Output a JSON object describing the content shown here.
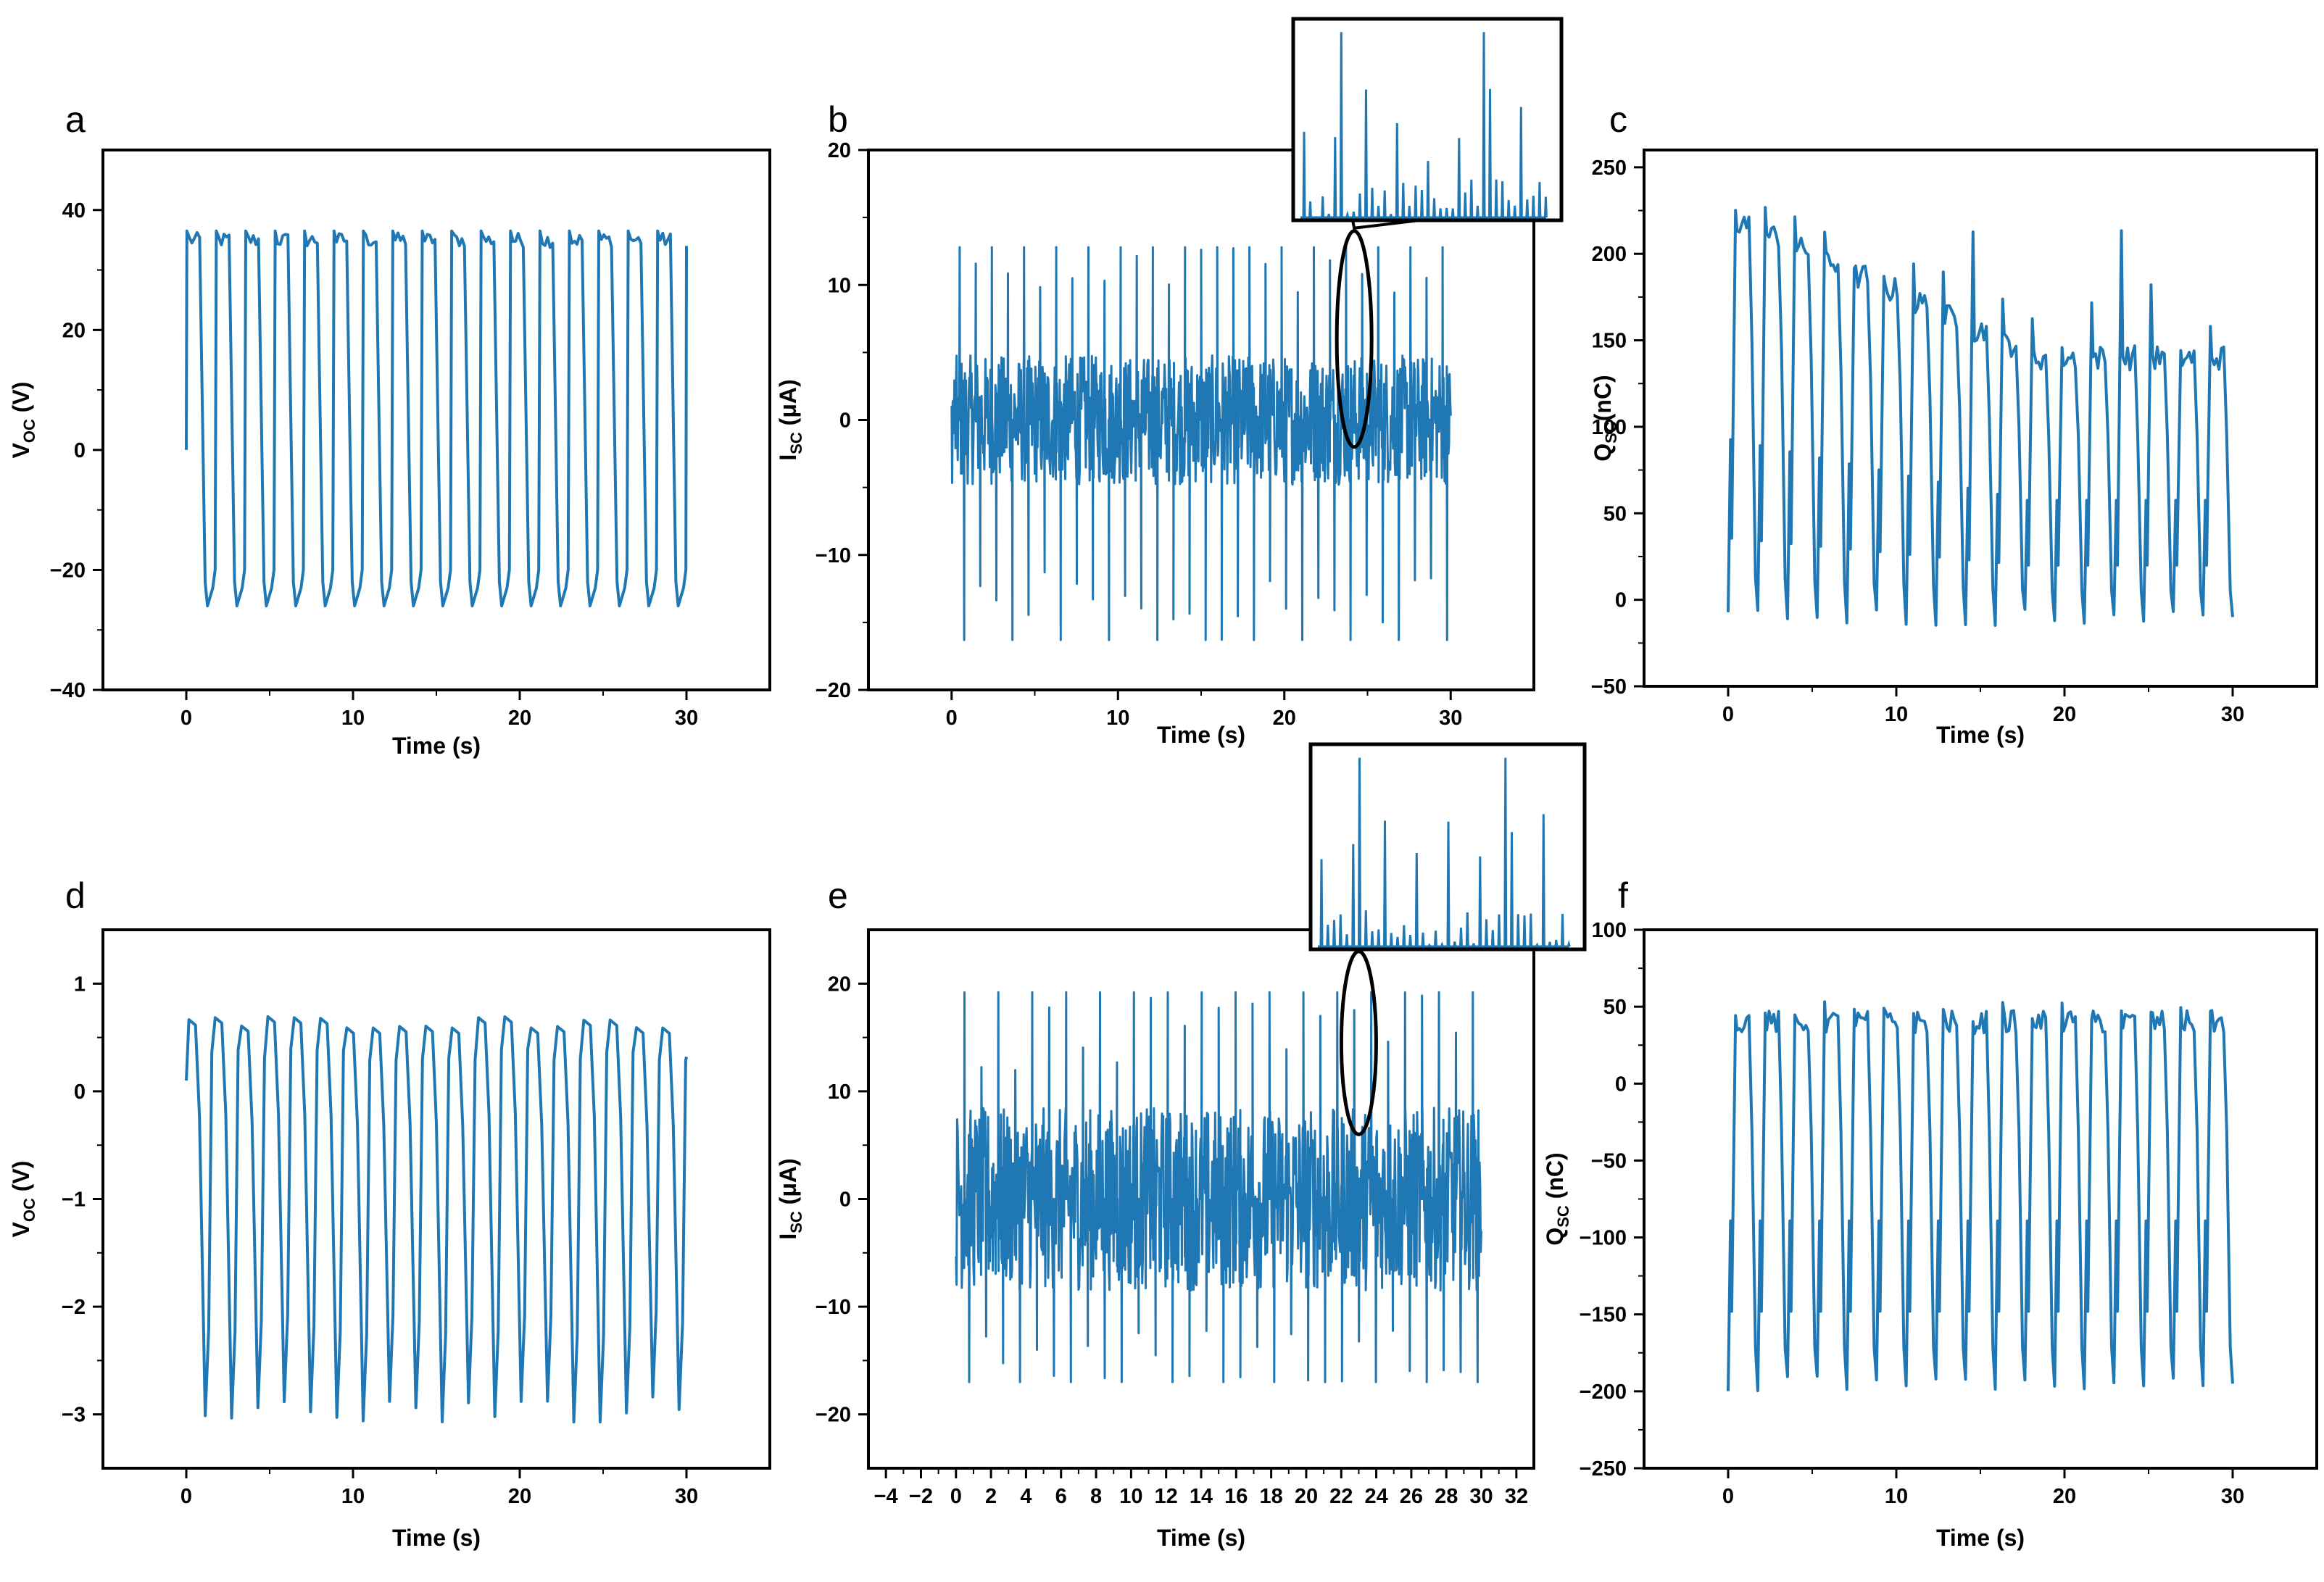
{
  "figure": {
    "line_color": "#1f77b4"
  },
  "chart_data": [
    {
      "panel": "a",
      "type": "line",
      "title": "",
      "xlabel": "Time (s)",
      "ylabel_main": "V",
      "ylabel_sub": "OC",
      "ylabel_tail": " (V)",
      "xlim": [
        -5,
        35
      ],
      "ylim": [
        -40,
        50
      ],
      "xticks": [
        0,
        10,
        20,
        30
      ],
      "yticks": [
        -40,
        -20,
        0,
        20,
        40
      ],
      "xtick_labels": [
        "0",
        "10",
        "20",
        "30"
      ],
      "ytick_labels": [
        "−40",
        "−20",
        "0",
        "20",
        "40"
      ],
      "signal": {
        "kind": "square",
        "cycles": 17,
        "t_start": 0,
        "t_end": 30,
        "high": 35,
        "low": -26,
        "start_value": 0,
        "peak_overshoot": 1.5
      }
    },
    {
      "panel": "b",
      "type": "line",
      "title": "",
      "xlabel": "Time (s)",
      "ylabel_main": "I",
      "ylabel_sub": "SC",
      "ylabel_tail": " (μA)",
      "xlim": [
        -5,
        35
      ],
      "ylim": [
        -20,
        20
      ],
      "xticks": [
        0,
        10,
        20,
        30
      ],
      "yticks": [
        -20,
        -10,
        0,
        10,
        20
      ],
      "xtick_labels": [
        "0",
        "10",
        "20",
        "30"
      ],
      "ytick_labels": [
        "−20",
        "−10",
        "0",
        "10",
        "20"
      ],
      "signal": {
        "kind": "spikes",
        "cycles": 31,
        "t_start": 0,
        "t_end": 30,
        "pos_peak": 12.8,
        "neg_peak": -16.3,
        "noise": 4.8,
        "pos_range": [
          9,
          13
        ],
        "neg_range": [
          -16.3,
          -11
        ]
      },
      "inset": {
        "highlight_time": 24.2,
        "highlight_range": [
          -2,
          14
        ]
      }
    },
    {
      "panel": "c",
      "type": "line",
      "title": "",
      "xlabel": "Time (s)",
      "ylabel_main": "Q",
      "ylabel_sub": "SC",
      "ylabel_tail": "(nC)",
      "xlim": [
        -5,
        35
      ],
      "ylim": [
        -50,
        260
      ],
      "xticks": [
        0,
        10,
        20,
        30
      ],
      "yticks": [
        -50,
        0,
        50,
        100,
        150,
        200,
        250
      ],
      "xtick_labels": [
        "0",
        "10",
        "20",
        "30"
      ],
      "ytick_labels": [
        "−50",
        "0",
        "50",
        "100",
        "150",
        "200",
        "250"
      ],
      "signal": {
        "kind": "charge",
        "cycles": 17,
        "t_start": 0,
        "t_end": 30,
        "high_early": 218,
        "high_late": 140,
        "low": -10,
        "peak": 232
      }
    },
    {
      "panel": "d",
      "type": "line",
      "title": "",
      "xlabel": "Time (s)",
      "ylabel_main": "V",
      "ylabel_sub": "OC",
      "ylabel_tail": " (V)",
      "xlim": [
        -5,
        35
      ],
      "ylim": [
        -3.5,
        1.5
      ],
      "xticks": [
        0,
        10,
        20,
        30
      ],
      "yticks": [
        -3,
        -2,
        -1,
        0,
        1
      ],
      "xtick_labels": [
        "0",
        "10",
        "20",
        "30"
      ],
      "ytick_labels": [
        "−3",
        "−2",
        "−1",
        "0",
        "1"
      ],
      "signal": {
        "kind": "oscillation",
        "cycles": 19,
        "t_start": 0,
        "t_end": 30,
        "high": 0.62,
        "low": -2.95,
        "start_value": 0.1
      }
    },
    {
      "panel": "e",
      "type": "line",
      "title": "",
      "xlabel": "Time (s)",
      "ylabel_main": "I",
      "ylabel_sub": "SC",
      "ylabel_tail": " (μA)",
      "xlim": [
        -5,
        33
      ],
      "ylim": [
        -25,
        25
      ],
      "xticks": [
        -4,
        -2,
        0,
        2,
        4,
        6,
        8,
        10,
        12,
        14,
        16,
        18,
        20,
        22,
        24,
        26,
        28,
        30,
        32
      ],
      "yticks": [
        -20,
        -10,
        0,
        10,
        20
      ],
      "xtick_labels": [
        "−4",
        "−2",
        "0",
        "2",
        "4",
        "6",
        "8",
        "10",
        "12",
        "14",
        "16",
        "18",
        "20",
        "22",
        "24",
        "26",
        "28",
        "30",
        "32"
      ],
      "ytick_labels": [
        "−20",
        "−10",
        "0",
        "10",
        "20"
      ],
      "signal": {
        "kind": "spikes",
        "cycles": 31,
        "t_start": 0,
        "t_end": 30,
        "pos_peak": 19.2,
        "neg_peak": -17,
        "noise": 8.5,
        "pos_range": [
          11,
          19.2
        ],
        "neg_range": [
          -17,
          -12
        ]
      },
      "inset": {
        "highlight_time": 23,
        "highlight_range": [
          6,
          23
        ]
      }
    },
    {
      "panel": "f",
      "type": "line",
      "title": "",
      "xlabel": "Time (s)",
      "ylabel_main": "Q",
      "ylabel_sub": "SC",
      "ylabel_tail": " (nC)",
      "xlim": [
        -5,
        35
      ],
      "ylim": [
        -250,
        100
      ],
      "xticks": [
        0,
        10,
        20,
        30
      ],
      "yticks": [
        -250,
        -200,
        -150,
        -100,
        -50,
        0,
        50,
        100
      ],
      "xtick_labels": [
        "0",
        "10",
        "20",
        "30"
      ],
      "ytick_labels": [
        "−250",
        "−200",
        "−150",
        "−100",
        "−50",
        "0",
        "50",
        "100"
      ],
      "signal": {
        "kind": "charge",
        "cycles": 17,
        "t_start": 0,
        "t_end": 30,
        "high_early": 40,
        "high_late": 40,
        "low": -195,
        "peak": 58
      }
    }
  ]
}
